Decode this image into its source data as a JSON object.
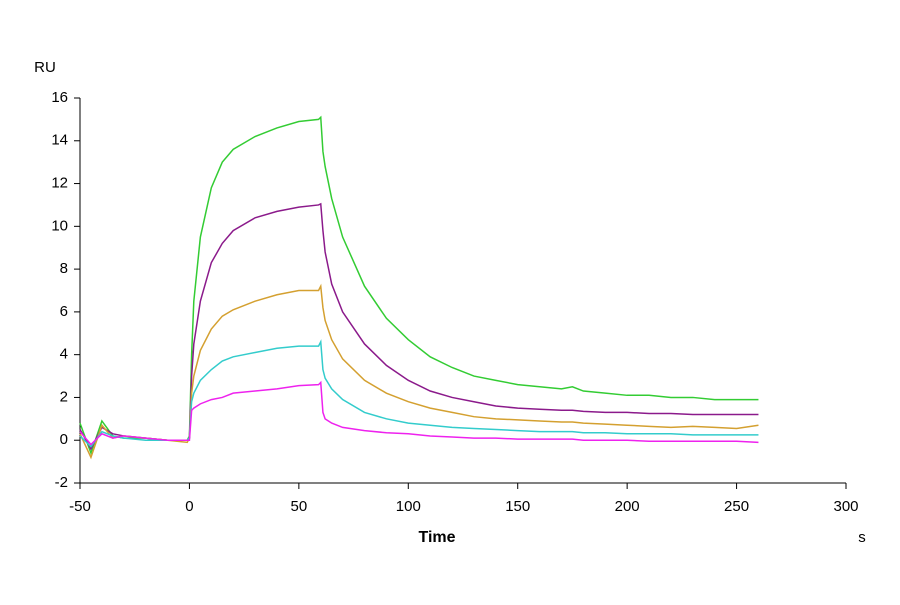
{
  "chart_data": {
    "type": "line",
    "y_label": "RU",
    "x_label": "Time",
    "x_unit": "s",
    "xlim": [
      -50,
      300
    ],
    "xticks": [
      -50,
      0,
      50,
      100,
      150,
      200,
      250,
      300
    ],
    "ylim": [
      -2,
      16
    ],
    "yticks": [
      -2,
      0,
      2,
      4,
      6,
      8,
      10,
      12,
      14,
      16
    ],
    "x": [
      -50,
      -45,
      -40,
      -35,
      -30,
      -20,
      -10,
      -1,
      0,
      1,
      2,
      5,
      10,
      15,
      20,
      30,
      40,
      50,
      59,
      60,
      61,
      62,
      65,
      70,
      80,
      90,
      100,
      110,
      120,
      130,
      140,
      150,
      160,
      170,
      175,
      180,
      190,
      200,
      210,
      220,
      230,
      240,
      250,
      260
    ],
    "series": [
      {
        "color": "#33cc33",
        "values": [
          0.8,
          -0.6,
          0.9,
          0.2,
          0.1,
          0.1,
          0,
          0,
          0.2,
          4,
          6.5,
          9.5,
          11.8,
          13,
          13.6,
          14.2,
          14.6,
          14.9,
          15,
          15.1,
          13.5,
          12.8,
          11.3,
          9.5,
          7.2,
          5.7,
          4.7,
          3.9,
          3.4,
          3.0,
          2.8,
          2.6,
          2.5,
          2.4,
          2.5,
          2.3,
          2.2,
          2.1,
          2.1,
          2.0,
          2.0,
          1.9,
          1.9,
          1.9
        ]
      },
      {
        "color": "#8b1a8b",
        "values": [
          0.5,
          -0.4,
          0.6,
          0.3,
          0.2,
          0.1,
          0,
          0,
          0.1,
          3,
          4.5,
          6.5,
          8.3,
          9.2,
          9.8,
          10.4,
          10.7,
          10.9,
          11.0,
          11.05,
          9.8,
          8.8,
          7.3,
          6.0,
          4.5,
          3.5,
          2.8,
          2.3,
          2.0,
          1.8,
          1.6,
          1.5,
          1.45,
          1.4,
          1.4,
          1.35,
          1.3,
          1.3,
          1.25,
          1.25,
          1.2,
          1.2,
          1.2,
          1.2
        ]
      },
      {
        "color": "#d4a030",
        "values": [
          0.3,
          -0.8,
          0.7,
          0.1,
          0.2,
          0.1,
          0,
          -0.1,
          0.1,
          2.2,
          3,
          4.2,
          5.2,
          5.8,
          6.1,
          6.5,
          6.8,
          7.0,
          7.0,
          7.2,
          6.2,
          5.6,
          4.7,
          3.8,
          2.8,
          2.2,
          1.8,
          1.5,
          1.3,
          1.1,
          1.0,
          0.95,
          0.9,
          0.85,
          0.85,
          0.8,
          0.75,
          0.7,
          0.65,
          0.6,
          0.65,
          0.6,
          0.55,
          0.7
        ]
      },
      {
        "color": "#33cccc",
        "values": [
          0.2,
          -0.3,
          0.4,
          0.2,
          0.1,
          0,
          0,
          0,
          0.1,
          1.8,
          2.2,
          2.8,
          3.3,
          3.7,
          3.9,
          4.1,
          4.3,
          4.4,
          4.4,
          4.6,
          3.3,
          2.9,
          2.4,
          1.9,
          1.3,
          1.0,
          0.8,
          0.7,
          0.6,
          0.55,
          0.5,
          0.45,
          0.4,
          0.4,
          0.4,
          0.35,
          0.35,
          0.3,
          0.3,
          0.3,
          0.25,
          0.25,
          0.25,
          0.25
        ]
      },
      {
        "color": "#ee22ee",
        "values": [
          0.4,
          -0.2,
          0.3,
          0.1,
          0.2,
          0.1,
          0,
          0,
          0,
          1.4,
          1.5,
          1.7,
          1.9,
          2.0,
          2.2,
          2.3,
          2.4,
          2.55,
          2.6,
          2.7,
          1.3,
          1.0,
          0.8,
          0.6,
          0.45,
          0.35,
          0.3,
          0.2,
          0.15,
          0.1,
          0.1,
          0.05,
          0.05,
          0.05,
          0.05,
          0.0,
          0.0,
          0.0,
          -0.05,
          -0.05,
          -0.05,
          -0.05,
          -0.05,
          -0.1
        ]
      }
    ]
  }
}
